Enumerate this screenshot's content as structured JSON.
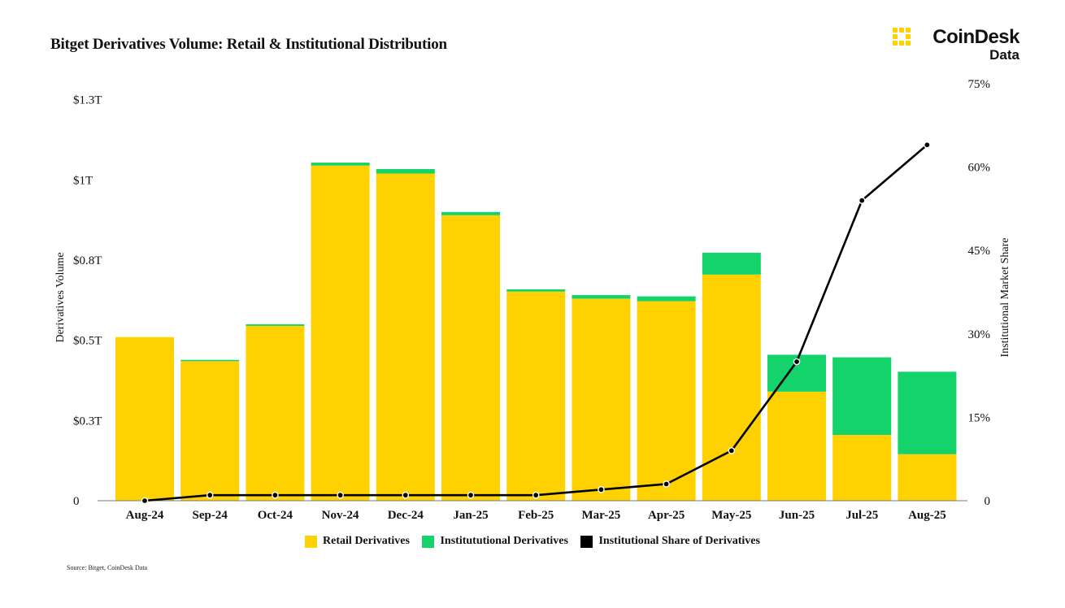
{
  "title": "Bitget Derivatives Volume: Retail & Institutional Distribution",
  "logo": {
    "name": "CoinDesk",
    "sub": "Data"
  },
  "source": "Source: Bitget, CoinDesk Data",
  "colors": {
    "retail": "#FFD100",
    "institutional": "#14D36B",
    "share": "#000000",
    "grid": "#777777"
  },
  "chart_data": {
    "type": "bar",
    "stacked": true,
    "categories": [
      "Aug-24",
      "Sep-24",
      "Oct-24",
      "Nov-24",
      "Dec-24",
      "Jan-25",
      "Feb-25",
      "Mar-25",
      "Apr-25",
      "May-25",
      "Jun-25",
      "Jul-25",
      "Aug-25"
    ],
    "series": [
      {
        "name": "Retail Derivatives",
        "axis": "left",
        "values": [
          0.51,
          0.435,
          0.545,
          1.045,
          1.02,
          0.89,
          0.652,
          0.63,
          0.622,
          0.705,
          0.34,
          0.205,
          0.145
        ]
      },
      {
        "name": "Institututional Derivatives",
        "axis": "left",
        "values": [
          0.0,
          0.004,
          0.005,
          0.009,
          0.014,
          0.01,
          0.007,
          0.011,
          0.015,
          0.068,
          0.115,
          0.242,
          0.257
        ]
      },
      {
        "name": "Institutional Share of Derivatives",
        "type": "line",
        "axis": "right",
        "values": [
          0.0,
          1.0,
          1.0,
          1.0,
          1.0,
          1.0,
          1.0,
          2.0,
          3.0,
          9.0,
          25.0,
          54.0,
          64.0
        ]
      }
    ],
    "ylabel": "Derivatives Volume",
    "y2label": "Institutional Market Share",
    "ylim": [
      0,
      1.3
    ],
    "y2lim": [
      0,
      75
    ],
    "yticks": [
      0,
      0.25,
      0.5,
      0.75,
      1.0,
      1.25
    ],
    "ytick_labels": [
      "0",
      "$0.3T",
      "$0.5T",
      "$0.8T",
      "$1T",
      "$1.3T"
    ],
    "y2ticks": [
      0,
      15,
      30,
      45,
      60,
      75
    ],
    "y2tick_labels": [
      "0",
      "15%",
      "30%",
      "45%",
      "60%",
      "75%"
    ],
    "grid": false,
    "legend": "bottom-center"
  }
}
